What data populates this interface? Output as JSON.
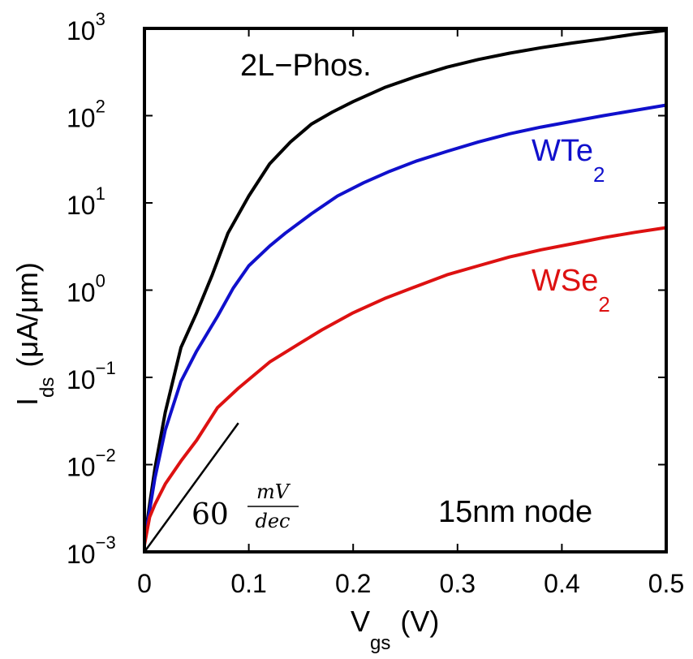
{
  "chart_data": {
    "type": "line",
    "title": "",
    "xlabel": "V",
    "xlabel_sub": "gs",
    "xlabel_units": "(V)",
    "ylabel": "I",
    "ylabel_sub": "ds",
    "ylabel_units": "(μA/μm)",
    "xlim": [
      0,
      0.5
    ],
    "ylim_log10": [
      -3,
      3
    ],
    "yscale": "log",
    "grid": false,
    "x_ticks": [
      {
        "value": 0,
        "label": "0"
      },
      {
        "value": 0.1,
        "label": "0.1"
      },
      {
        "value": 0.2,
        "label": "0.2"
      },
      {
        "value": 0.3,
        "label": "0.3"
      },
      {
        "value": 0.4,
        "label": "0.4"
      },
      {
        "value": 0.5,
        "label": "0.5"
      }
    ],
    "y_ticks": [
      {
        "log": -3,
        "base": "10",
        "exp": "−3"
      },
      {
        "log": -2,
        "base": "10",
        "exp": "−2"
      },
      {
        "log": -1,
        "base": "10",
        "exp": "−1"
      },
      {
        "log": 0,
        "base": "10",
        "exp": "0"
      },
      {
        "log": 1,
        "base": "10",
        "exp": "1"
      },
      {
        "log": 2,
        "base": "10",
        "exp": "2"
      },
      {
        "log": 3,
        "base": "10",
        "exp": "3"
      }
    ],
    "series": [
      {
        "name": "2L-Phos.",
        "color": "#000000",
        "x": [
          0,
          0.005,
          0.01,
          0.02,
          0.035,
          0.05,
          0.065,
          0.08,
          0.1,
          0.12,
          0.14,
          0.16,
          0.18,
          0.2,
          0.23,
          0.26,
          0.29,
          0.32,
          0.35,
          0.38,
          0.41,
          0.44,
          0.47,
          0.5
        ],
        "y": [
          0.0013,
          0.0035,
          0.009,
          0.04,
          0.22,
          0.55,
          1.5,
          4.5,
          12,
          28,
          50,
          80,
          110,
          145,
          210,
          280,
          360,
          440,
          520,
          600,
          680,
          760,
          860,
          950
        ]
      },
      {
        "name": "WTe2",
        "color": "#1010cc",
        "x": [
          0,
          0.005,
          0.01,
          0.02,
          0.035,
          0.05,
          0.07,
          0.085,
          0.1,
          0.12,
          0.135,
          0.16,
          0.185,
          0.21,
          0.235,
          0.26,
          0.29,
          0.32,
          0.35,
          0.38,
          0.41,
          0.44,
          0.47,
          0.5
        ],
        "y": [
          0.0013,
          0.003,
          0.007,
          0.025,
          0.09,
          0.2,
          0.5,
          1.05,
          1.9,
          3.2,
          4.5,
          7.5,
          12,
          17,
          23,
          30,
          39,
          50,
          62,
          74,
          86,
          100,
          115,
          132
        ]
      },
      {
        "name": "WSe2",
        "color": "#dd1111",
        "x": [
          0,
          0.005,
          0.01,
          0.02,
          0.035,
          0.05,
          0.07,
          0.09,
          0.12,
          0.15,
          0.17,
          0.2,
          0.23,
          0.26,
          0.29,
          0.32,
          0.35,
          0.38,
          0.41,
          0.44,
          0.47,
          0.5
        ],
        "y": [
          0.0012,
          0.0025,
          0.0035,
          0.006,
          0.011,
          0.019,
          0.045,
          0.075,
          0.15,
          0.25,
          0.35,
          0.55,
          0.8,
          1.1,
          1.5,
          1.9,
          2.4,
          2.9,
          3.4,
          4.0,
          4.6,
          5.2
        ]
      }
    ],
    "slope_ref": {
      "label_num": "mV",
      "label_den": "dec",
      "label_prefix": "60",
      "x": [
        0,
        0.09
      ],
      "y": [
        0.001,
        0.03
      ]
    },
    "annotations": {
      "phos": "2L−Phos.",
      "wte2_main": "WTe",
      "wte2_sub": "2",
      "wse2_main": "WSe",
      "wse2_sub": "2",
      "node": "15nm node"
    },
    "colors": {
      "phos": "#000000",
      "wte2": "#1010cc",
      "wse2": "#dd1111"
    }
  }
}
